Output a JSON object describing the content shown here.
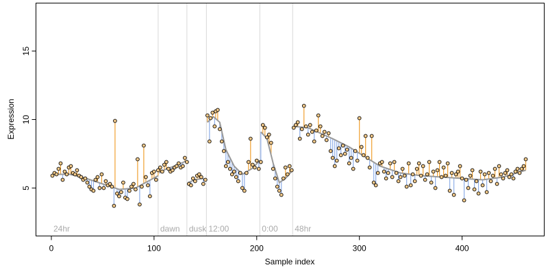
{
  "chart_data": {
    "type": "scatter",
    "title": "",
    "xlabel": "Sample index",
    "ylabel": "Expression",
    "xlim": [
      -15,
      480
    ],
    "ylim": [
      1.5,
      18.5
    ],
    "x_ticks": [
      0,
      100,
      200,
      300,
      400
    ],
    "y_ticks": [
      5,
      10,
      15
    ],
    "grid": false,
    "legend": "none",
    "colors": {
      "fit_line": "#9a9a9a",
      "residual_above": "#f0a030",
      "residual_below": "#8eaee8",
      "point_fill": "#f2c98a",
      "point_stroke": "#000000",
      "separator": "#d8d8d8",
      "region_label": "#aaaaaa"
    },
    "regions": [
      {
        "label": "24hr",
        "start": 1
      },
      {
        "label": "dawn",
        "start": 105
      },
      {
        "label": "dusk",
        "start": 133
      },
      {
        "label": "12:00",
        "start": 152
      },
      {
        "label": "0:00",
        "start": 204
      },
      {
        "label": "48hr",
        "start": 236
      }
    ],
    "fit_segments": [
      {
        "x": [
          1,
          18,
          34,
          50,
          66,
          82,
          104
        ],
        "y": [
          6.0,
          6.0,
          5.7,
          5.3,
          4.9,
          5.0,
          5.9
        ]
      },
      {
        "x": [
          105,
          112,
          120,
          126,
          132
        ],
        "y": [
          6.1,
          6.4,
          6.6,
          6.8,
          7.0
        ]
      },
      {
        "x": [
          133,
          140,
          147,
          151
        ],
        "y": [
          5.4,
          5.6,
          5.7,
          5.6
        ]
      },
      {
        "x": [
          152,
          158,
          164,
          170,
          178,
          186,
          195,
          203
        ],
        "y": [
          9.8,
          10.2,
          9.8,
          7.8,
          6.6,
          6.0,
          6.4,
          7.0
        ]
      },
      {
        "x": [
          204,
          210,
          216,
          222,
          228,
          235
        ],
        "y": [
          9.1,
          8.6,
          6.8,
          5.4,
          5.7,
          6.3
        ]
      },
      {
        "x": [
          236,
          250,
          262,
          274,
          290,
          305,
          320,
          340,
          360,
          380,
          400,
          420,
          440,
          462
        ],
        "y": [
          9.5,
          9.4,
          9.0,
          8.6,
          8.0,
          7.3,
          6.6,
          6.1,
          5.9,
          5.8,
          5.7,
          5.6,
          5.8,
          6.3
        ]
      }
    ],
    "points": [
      [
        1,
        5.9
      ],
      [
        3,
        6.1
      ],
      [
        5,
        6.0
      ],
      [
        7,
        6.4
      ],
      [
        9,
        6.8
      ],
      [
        11,
        5.6
      ],
      [
        13,
        6.2
      ],
      [
        15,
        6.0
      ],
      [
        17,
        6.5
      ],
      [
        19,
        6.6
      ],
      [
        21,
        6.1
      ],
      [
        23,
        6.0
      ],
      [
        25,
        6.3
      ],
      [
        27,
        5.9
      ],
      [
        29,
        5.8
      ],
      [
        31,
        5.6
      ],
      [
        33,
        5.7
      ],
      [
        35,
        5.4
      ],
      [
        37,
        5.1
      ],
      [
        39,
        4.9
      ],
      [
        41,
        4.8
      ],
      [
        43,
        5.6
      ],
      [
        45,
        5.8
      ],
      [
        47,
        5.0
      ],
      [
        49,
        6.0
      ],
      [
        51,
        5.0
      ],
      [
        53,
        5.5
      ],
      [
        55,
        5.2
      ],
      [
        57,
        5.3
      ],
      [
        59,
        5.1
      ],
      [
        61,
        3.7
      ],
      [
        62,
        9.9
      ],
      [
        64,
        4.6
      ],
      [
        66,
        4.4
      ],
      [
        68,
        4.7
      ],
      [
        70,
        5.4
      ],
      [
        72,
        4.3
      ],
      [
        74,
        4.2
      ],
      [
        76,
        4.8
      ],
      [
        78,
        5.1
      ],
      [
        80,
        5.3
      ],
      [
        82,
        4.9
      ],
      [
        84,
        7.1
      ],
      [
        86,
        3.8
      ],
      [
        88,
        5.1
      ],
      [
        90,
        8.1
      ],
      [
        92,
        5.8
      ],
      [
        94,
        5.2
      ],
      [
        96,
        4.4
      ],
      [
        98,
        6.1
      ],
      [
        100,
        6.2
      ],
      [
        102,
        5.6
      ],
      [
        104,
        6.3
      ],
      [
        106,
        6.5
      ],
      [
        108,
        6.2
      ],
      [
        110,
        6.7
      ],
      [
        112,
        6.9
      ],
      [
        114,
        6.4
      ],
      [
        116,
        6.2
      ],
      [
        118,
        6.3
      ],
      [
        120,
        6.5
      ],
      [
        122,
        6.6
      ],
      [
        124,
        6.8
      ],
      [
        126,
        6.5
      ],
      [
        128,
        6.6
      ],
      [
        130,
        7.2
      ],
      [
        132,
        6.9
      ],
      [
        134,
        5.3
      ],
      [
        136,
        5.2
      ],
      [
        138,
        5.7
      ],
      [
        140,
        5.5
      ],
      [
        142,
        5.9
      ],
      [
        144,
        6.0
      ],
      [
        146,
        5.8
      ],
      [
        148,
        5.3
      ],
      [
        150,
        5.6
      ],
      [
        152,
        10.3
      ],
      [
        154,
        8.4
      ],
      [
        155,
        10.1
      ],
      [
        157,
        10.5
      ],
      [
        159,
        9.5
      ],
      [
        160,
        10.6
      ],
      [
        162,
        10.7
      ],
      [
        164,
        9.3
      ],
      [
        166,
        8.4
      ],
      [
        168,
        7.7
      ],
      [
        170,
        6.6
      ],
      [
        172,
        6.9
      ],
      [
        174,
        6.4
      ],
      [
        176,
        6.0
      ],
      [
        178,
        6.2
      ],
      [
        180,
        5.8
      ],
      [
        182,
        5.5
      ],
      [
        184,
        6.1
      ],
      [
        186,
        5.0
      ],
      [
        188,
        4.8
      ],
      [
        190,
        6.1
      ],
      [
        192,
        6.9
      ],
      [
        194,
        8.6
      ],
      [
        196,
        6.7
      ],
      [
        198,
        6.5
      ],
      [
        200,
        7.0
      ],
      [
        202,
        6.4
      ],
      [
        204,
        6.9
      ],
      [
        206,
        9.6
      ],
      [
        208,
        9.4
      ],
      [
        210,
        8.7
      ],
      [
        212,
        8.9
      ],
      [
        214,
        8.3
      ],
      [
        216,
        6.4
      ],
      [
        218,
        5.7
      ],
      [
        220,
        5.1
      ],
      [
        222,
        4.8
      ],
      [
        224,
        4.5
      ],
      [
        226,
        5.7
      ],
      [
        228,
        6.5
      ],
      [
        230,
        6.0
      ],
      [
        232,
        6.6
      ],
      [
        234,
        6.3
      ],
      [
        236,
        9.4
      ],
      [
        238,
        9.6
      ],
      [
        240,
        9.8
      ],
      [
        242,
        8.6
      ],
      [
        244,
        9.3
      ],
      [
        246,
        11.0
      ],
      [
        248,
        9.5
      ],
      [
        250,
        8.9
      ],
      [
        252,
        9.6
      ],
      [
        254,
        9.1
      ],
      [
        256,
        8.4
      ],
      [
        258,
        9.2
      ],
      [
        260,
        10.3
      ],
      [
        262,
        9.5
      ],
      [
        264,
        8.8
      ],
      [
        266,
        9.1
      ],
      [
        268,
        8.5
      ],
      [
        270,
        9.0
      ],
      [
        272,
        7.7
      ],
      [
        274,
        7.2
      ],
      [
        276,
        6.6
      ],
      [
        278,
        7.0
      ],
      [
        280,
        7.9
      ],
      [
        282,
        7.4
      ],
      [
        284,
        8.1
      ],
      [
        286,
        7.5
      ],
      [
        288,
        7.8
      ],
      [
        290,
        6.8
      ],
      [
        292,
        7.2
      ],
      [
        294,
        6.4
      ],
      [
        296,
        7.7
      ],
      [
        298,
        7.0
      ],
      [
        300,
        10.1
      ],
      [
        302,
        8.0
      ],
      [
        304,
        7.4
      ],
      [
        306,
        8.8
      ],
      [
        308,
        7.2
      ],
      [
        310,
        6.5
      ],
      [
        312,
        8.8
      ],
      [
        314,
        5.4
      ],
      [
        316,
        5.2
      ],
      [
        318,
        6.1
      ],
      [
        320,
        6.8
      ],
      [
        322,
        6.9
      ],
      [
        324,
        6.2
      ],
      [
        326,
        5.7
      ],
      [
        328,
        6.1
      ],
      [
        330,
        6.8
      ],
      [
        332,
        5.8
      ],
      [
        334,
        6.9
      ],
      [
        336,
        6.1
      ],
      [
        338,
        5.5
      ],
      [
        340,
        5.8
      ],
      [
        342,
        6.4
      ],
      [
        344,
        5.9
      ],
      [
        346,
        5.1
      ],
      [
        348,
        6.8
      ],
      [
        350,
        5.2
      ],
      [
        352,
        6.0
      ],
      [
        354,
        5.5
      ],
      [
        356,
        6.4
      ],
      [
        358,
        6.8
      ],
      [
        360,
        5.9
      ],
      [
        362,
        6.6
      ],
      [
        364,
        5.6
      ],
      [
        366,
        6.0
      ],
      [
        368,
        6.9
      ],
      [
        370,
        5.4
      ],
      [
        372,
        6.2
      ],
      [
        374,
        5.0
      ],
      [
        376,
        6.3
      ],
      [
        378,
        6.9
      ],
      [
        380,
        5.8
      ],
      [
        382,
        6.5
      ],
      [
        384,
        5.9
      ],
      [
        386,
        6.8
      ],
      [
        388,
        4.8
      ],
      [
        390,
        6.1
      ],
      [
        392,
        4.5
      ],
      [
        394,
        6.0
      ],
      [
        396,
        6.2
      ],
      [
        398,
        6.6
      ],
      [
        400,
        5.7
      ],
      [
        402,
        4.1
      ],
      [
        404,
        5.6
      ],
      [
        406,
        5.0
      ],
      [
        408,
        5.9
      ],
      [
        410,
        6.3
      ],
      [
        412,
        4.9
      ],
      [
        414,
        5.5
      ],
      [
        416,
        4.6
      ],
      [
        418,
        6.2
      ],
      [
        420,
        5.2
      ],
      [
        422,
        6.0
      ],
      [
        424,
        4.7
      ],
      [
        426,
        6.1
      ],
      [
        428,
        5.5
      ],
      [
        430,
        5.9
      ],
      [
        432,
        6.4
      ],
      [
        434,
        5.3
      ],
      [
        436,
        6.6
      ],
      [
        438,
        6.0
      ],
      [
        440,
        5.7
      ],
      [
        442,
        6.1
      ],
      [
        444,
        6.3
      ],
      [
        446,
        5.8
      ],
      [
        448,
        6.0
      ],
      [
        450,
        5.7
      ],
      [
        452,
        6.2
      ],
      [
        454,
        6.4
      ],
      [
        456,
        6.1
      ],
      [
        458,
        6.4
      ],
      [
        460,
        6.6
      ],
      [
        462,
        7.1
      ]
    ]
  }
}
